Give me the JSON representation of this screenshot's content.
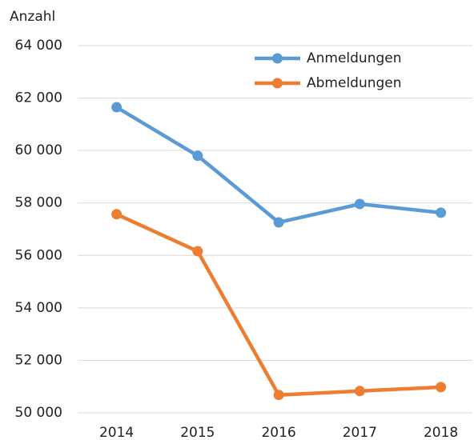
{
  "chart_data": {
    "type": "line",
    "y_label": "Anzahl",
    "categories": [
      "2014",
      "2015",
      "2016",
      "2017",
      "2018"
    ],
    "series": [
      {
        "name": "Anmeldungen",
        "color": "#5b9bd5",
        "values": [
          61650,
          59800,
          57260,
          57960,
          57630
        ]
      },
      {
        "name": "Abmeldungen",
        "color": "#ed7d31",
        "values": [
          57570,
          56160,
          50680,
          50830,
          50980
        ]
      }
    ],
    "ylim": [
      50000,
      64000
    ],
    "yticks": [
      {
        "value": 50000,
        "label": "50 000"
      },
      {
        "value": 52000,
        "label": "52 000"
      },
      {
        "value": 54000,
        "label": "54 000"
      },
      {
        "value": 56000,
        "label": "56 000"
      },
      {
        "value": 58000,
        "label": "58 000"
      },
      {
        "value": 60000,
        "label": "60 000"
      },
      {
        "value": 62000,
        "label": "62 000"
      },
      {
        "value": 64000,
        "label": "64 000"
      }
    ],
    "grid": true,
    "legend": "top-right"
  }
}
